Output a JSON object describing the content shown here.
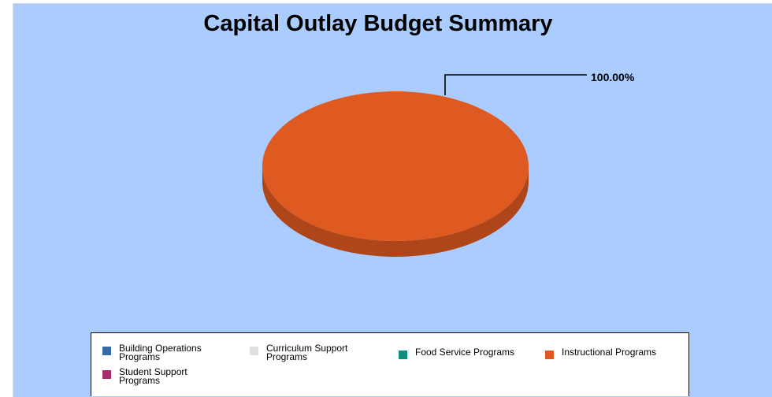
{
  "chart_data": {
    "type": "pie",
    "title": "Capital Outlay Budget Summary",
    "slices": [
      {
        "label": "Building Operations Programs",
        "value": 0,
        "color": "#3a6aa6"
      },
      {
        "label": "Curriculum Support Programs",
        "value": 0,
        "color": "#e0e0e0"
      },
      {
        "label": "Food Service Programs",
        "value": 0,
        "color": "#0d8f78"
      },
      {
        "label": "Instructional Programs",
        "value": 100.0,
        "color": "#df5a20"
      },
      {
        "label": "Student Support Programs",
        "value": 0,
        "color": "#a82c6c"
      }
    ],
    "data_labels": [
      "100.00%"
    ],
    "legend_position": "bottom",
    "style": "3d-pie",
    "background_color": "#aaccff"
  }
}
